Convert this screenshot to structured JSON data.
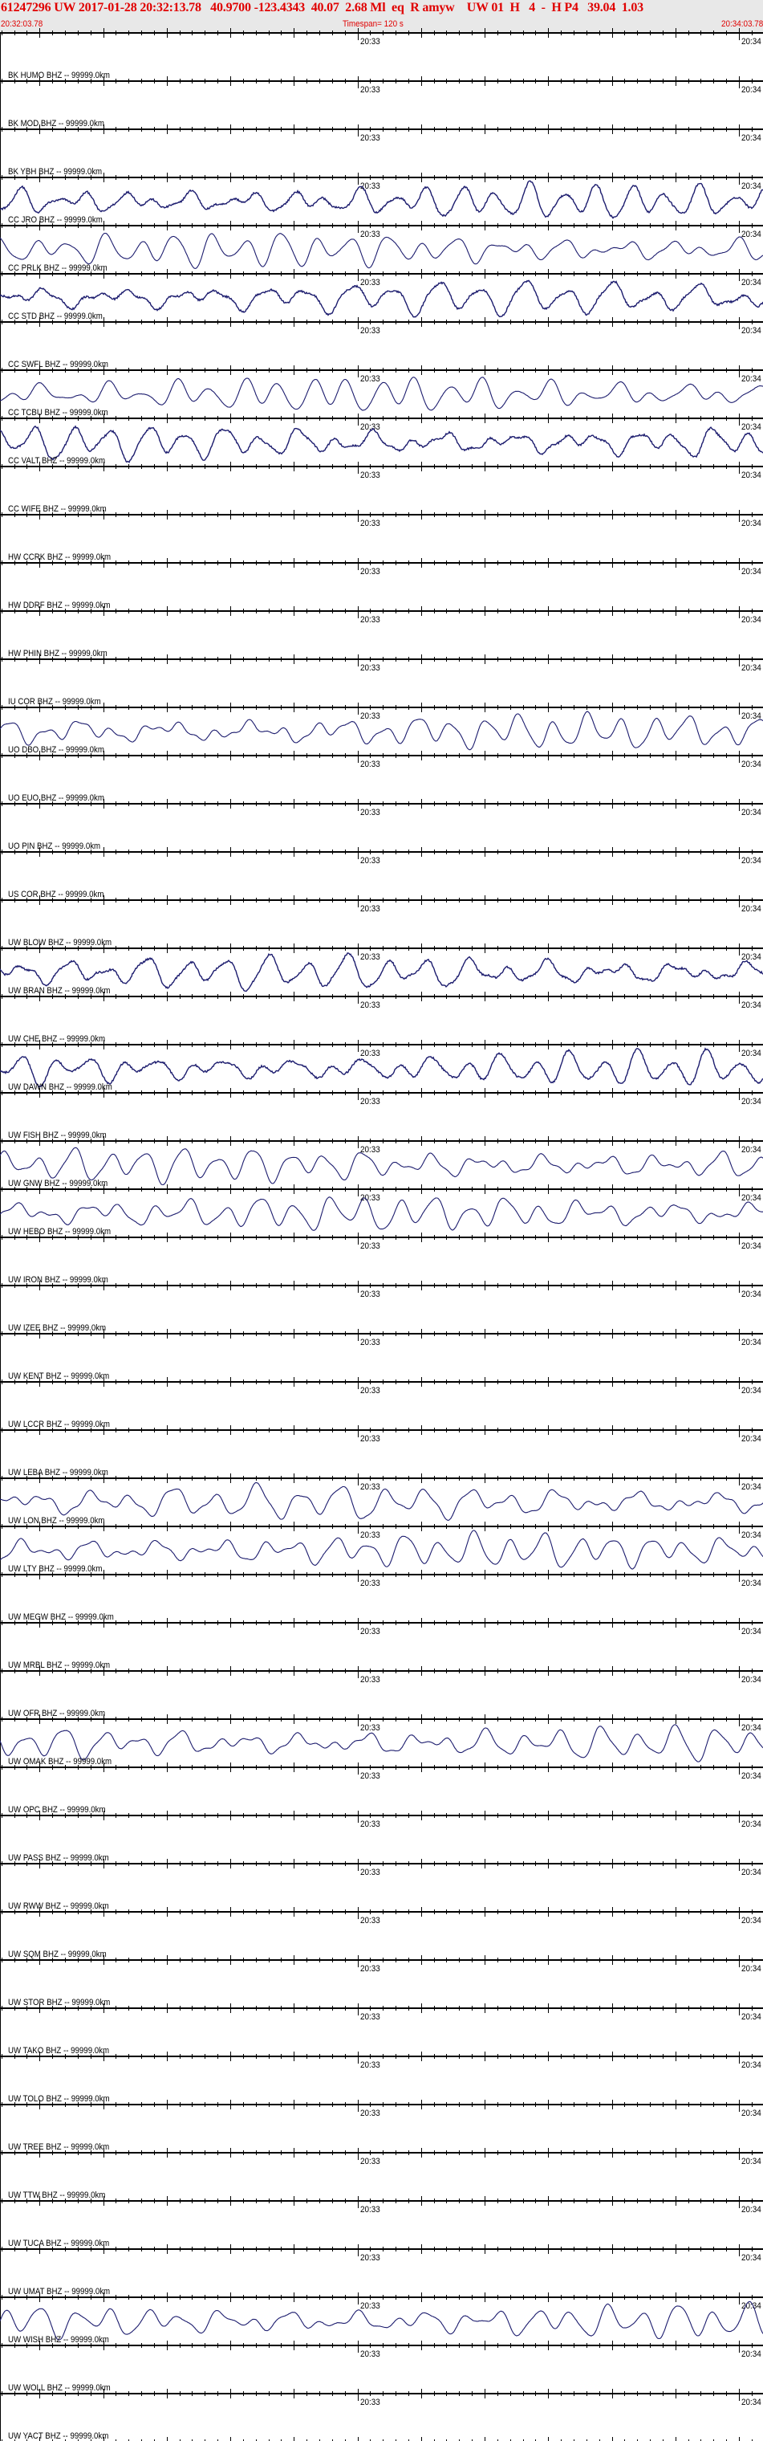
{
  "header": {
    "title": "61247296 UW 2017-01-28 20:32:13.78   40.9700 -123.4343  40.07  2.68 Ml  eq  R amyw    UW 01  H   4  -  H P4   39.04  1.03",
    "start_time": "20:32:03.78",
    "timespan": "Timespan= 120 s",
    "end_time": "20:34:03.78"
  },
  "axis": {
    "minute_label": "20:33",
    "next_minute_label": "20:34",
    "window_seconds": 120,
    "minute_offset_seconds": 56.22,
    "major_tick_seconds": 10,
    "minor_tick_seconds": 2
  },
  "colors": {
    "title": "#e00000",
    "header_bg": "#e8e8e8",
    "trace": "#1c1c6e",
    "axis": "#000000"
  },
  "stations": [
    {
      "label": "BK HUMO BHZ -- 99999.0km",
      "trace": false
    },
    {
      "label": "BK MOD BHZ -- 99999.0km",
      "trace": false
    },
    {
      "label": "BK YBH BHZ -- 99999.0km",
      "trace": true,
      "noisy": true
    },
    {
      "label": "CC JRO BHZ -- 99999.0km",
      "trace": true,
      "noisy": false
    },
    {
      "label": "CC PRLK BHZ -- 99999.0km",
      "trace": true,
      "noisy": true
    },
    {
      "label": "CC STD BHZ -- 99999.0km",
      "trace": false
    },
    {
      "label": "CC SWFL BHZ -- 99999.0km",
      "trace": true,
      "noisy": false
    },
    {
      "label": "CC TCBU BHZ -- 99999.0km",
      "trace": true,
      "noisy": true
    },
    {
      "label": "CC VALT BHZ -- 99999.0km",
      "trace": false
    },
    {
      "label": "CC WIFE BHZ -- 99999.0km",
      "trace": false
    },
    {
      "label": "HW CCRK BHZ -- 99999.0km",
      "trace": false
    },
    {
      "label": "HW DDRF BHZ -- 99999.0km",
      "trace": false
    },
    {
      "label": "HW PHIN BHZ -- 99999.0km",
      "trace": false
    },
    {
      "label": "IU COR BHZ -- 99999.0km",
      "trace": true,
      "noisy": false
    },
    {
      "label": "UO DBO BHZ -- 99999.0km",
      "trace": false
    },
    {
      "label": "UO EUO BHZ -- 99999.0km",
      "trace": false
    },
    {
      "label": "UO PIN BHZ -- 99999.0km",
      "trace": false
    },
    {
      "label": "US COR BHZ -- 99999.0km",
      "trace": false
    },
    {
      "label": "UW BLOW BHZ -- 99999.0km",
      "trace": true,
      "noisy": true
    },
    {
      "label": "UW BRAN BHZ -- 99999.0km",
      "trace": false
    },
    {
      "label": "UW CHE BHZ -- 99999.0km",
      "trace": true,
      "noisy": true
    },
    {
      "label": "UW DAWN BHZ -- 99999.0km",
      "trace": false
    },
    {
      "label": "UW FISH BHZ -- 99999.0km",
      "trace": true,
      "noisy": false
    },
    {
      "label": "UW GNW BHZ -- 99999.0km",
      "trace": true,
      "noisy": false
    },
    {
      "label": "UW HEBO BHZ -- 99999.0km",
      "trace": false
    },
    {
      "label": "UW IRON BHZ -- 99999.0km",
      "trace": false
    },
    {
      "label": "UW IZEE BHZ -- 99999.0km",
      "trace": false
    },
    {
      "label": "UW KENT BHZ -- 99999.0km",
      "trace": false
    },
    {
      "label": "UW LCCR BHZ -- 99999.0km",
      "trace": false
    },
    {
      "label": "UW LEBA BHZ -- 99999.0km",
      "trace": true,
      "noisy": false
    },
    {
      "label": "UW LON BHZ -- 99999.0km",
      "trace": true,
      "noisy": false
    },
    {
      "label": "UW LTY BHZ -- 99999.0km",
      "trace": false
    },
    {
      "label": "UW MEGW BHZ -- 99999.0km",
      "trace": false
    },
    {
      "label": "UW MRBL BHZ -- 99999.0km",
      "trace": false
    },
    {
      "label": "UW OFR BHZ -- 99999.0km",
      "trace": true,
      "noisy": false
    },
    {
      "label": "UW OMAK BHZ -- 99999.0km",
      "trace": false
    },
    {
      "label": "UW OPC BHZ -- 99999.0km",
      "trace": false
    },
    {
      "label": "UW PASS BHZ -- 99999.0km",
      "trace": false
    },
    {
      "label": "UW RWW BHZ -- 99999.0km",
      "trace": false
    },
    {
      "label": "UW SQM BHZ -- 99999.0km",
      "trace": false
    },
    {
      "label": "UW STOR BHZ -- 99999.0km",
      "trace": false
    },
    {
      "label": "UW TAKO BHZ -- 99999.0km",
      "trace": false
    },
    {
      "label": "UW TOLO BHZ -- 99999.0km",
      "trace": false
    },
    {
      "label": "UW TREE BHZ -- 99999.0km",
      "trace": false
    },
    {
      "label": "UW TTW BHZ -- 99999.0km",
      "trace": false
    },
    {
      "label": "UW TUCA BHZ -- 99999.0km",
      "trace": false
    },
    {
      "label": "UW UMAT BHZ -- 99999.0km",
      "trace": true,
      "noisy": false
    },
    {
      "label": "UW WISH BHZ -- 99999.0km",
      "trace": false
    },
    {
      "label": "UW WOLL BHZ -- 99999.0km",
      "trace": false
    },
    {
      "label": "UW YACT BHZ -- 99999.0km",
      "trace": false
    }
  ]
}
